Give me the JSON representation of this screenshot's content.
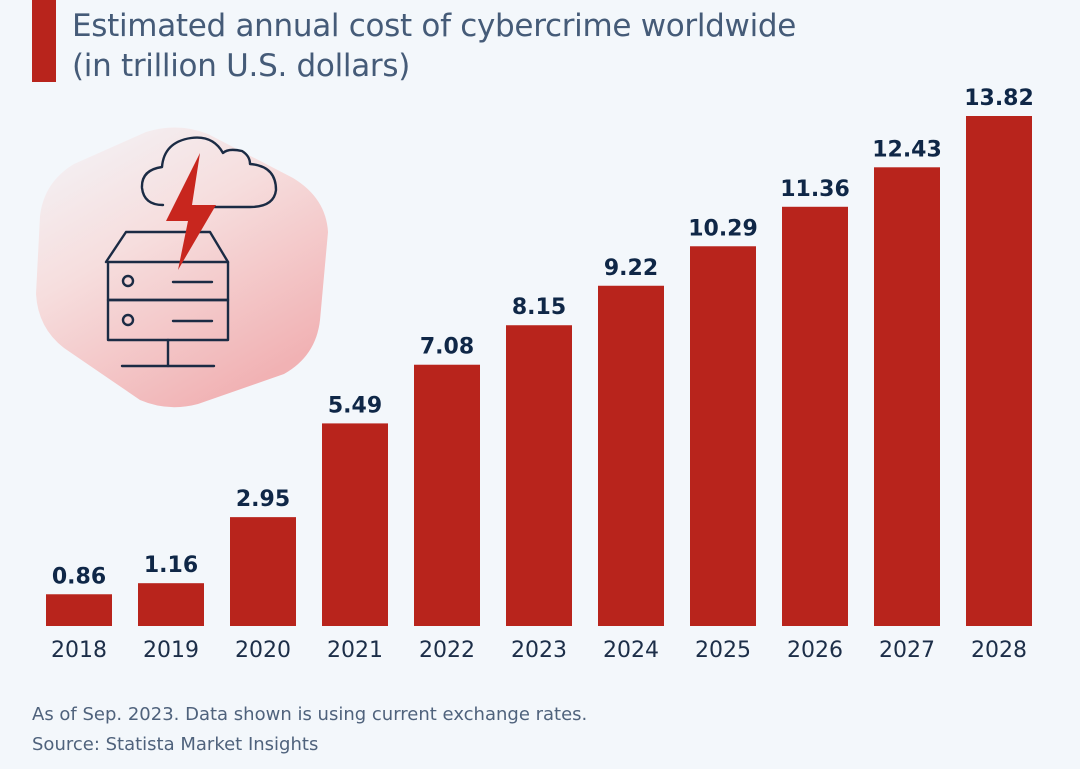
{
  "chart_data": {
    "type": "bar",
    "title": "Estimated annual cost of cybercrime worldwide",
    "subtitle": "(in trillion U.S. dollars)",
    "categories": [
      "2018",
      "2019",
      "2020",
      "2021",
      "2022",
      "2023",
      "2024",
      "2025",
      "2026",
      "2027",
      "2028"
    ],
    "values": [
      0.86,
      1.16,
      2.95,
      5.49,
      7.08,
      8.15,
      9.22,
      10.29,
      11.36,
      12.43,
      13.82
    ],
    "value_labels": [
      "0.86",
      "1.16",
      "2.95",
      "5.49",
      "7.08",
      "8.15",
      "9.22",
      "10.29",
      "11.36",
      "12.43",
      "13.82"
    ],
    "xlabel": "",
    "ylabel": "",
    "ylim": [
      0,
      13.82
    ],
    "grid": false,
    "legend": "none",
    "bar_color": "#b8241c"
  },
  "footer": {
    "note": "As of Sep. 2023. Data shown is using current exchange rates.",
    "source": "Source: Statista Market Insights"
  },
  "illustration": {
    "icon": "cloud-server-lightning-icon",
    "accent_color": "#c8261e",
    "line_color": "#1b2b44"
  }
}
